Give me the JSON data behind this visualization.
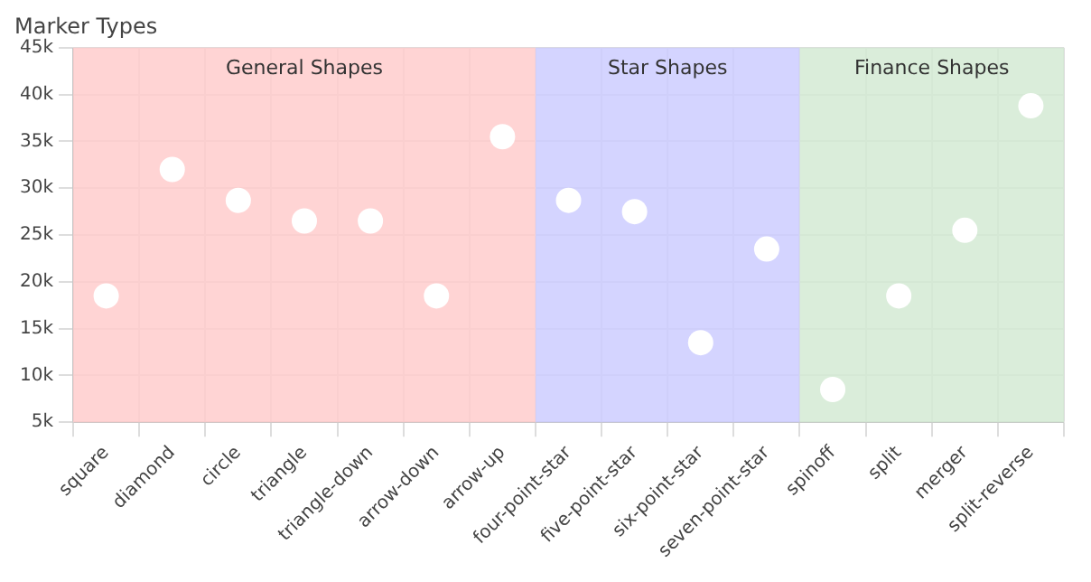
{
  "chart_data": {
    "type": "scatter",
    "title": "Marker Types",
    "categories": [
      "square",
      "diamond",
      "circle",
      "triangle",
      "triangle-down",
      "arrow-down",
      "arrow-up",
      "four-point-star",
      "five-point-star",
      "six-point-star",
      "seven-point-star",
      "spinoff",
      "split",
      "merger",
      "split-reverse"
    ],
    "series": [
      {
        "color": "#ffffff",
        "values": [
          18500,
          32000,
          28700,
          26500,
          26500,
          18500,
          35500,
          28700,
          27500,
          13500,
          23500,
          8500,
          18500,
          25500,
          38800
        ]
      }
    ],
    "ylim": [
      5000,
      45000
    ],
    "yticks": [
      {
        "value": 5000,
        "label": "5k"
      },
      {
        "value": 10000,
        "label": "10k"
      },
      {
        "value": 15000,
        "label": "15k"
      },
      {
        "value": 20000,
        "label": "20k"
      },
      {
        "value": 25000,
        "label": "25k"
      },
      {
        "value": 30000,
        "label": "30k"
      },
      {
        "value": 35000,
        "label": "35k"
      },
      {
        "value": 40000,
        "label": "40k"
      },
      {
        "value": 45000,
        "label": "45k"
      }
    ],
    "bands": [
      {
        "axis": "x",
        "from": "square",
        "to": "arrow-up",
        "label": "General Shapes",
        "color": "#ffcccc"
      },
      {
        "axis": "x",
        "from": "four-point-star",
        "to": "seven-point-star",
        "label": "Star Shapes",
        "color": "#ccccff"
      },
      {
        "axis": "x",
        "from": "spinoff",
        "to": "split-reverse",
        "label": "Finance Shapes",
        "color": "#d3ead3"
      }
    ],
    "grid": true,
    "marker": "circle",
    "legend": false
  }
}
